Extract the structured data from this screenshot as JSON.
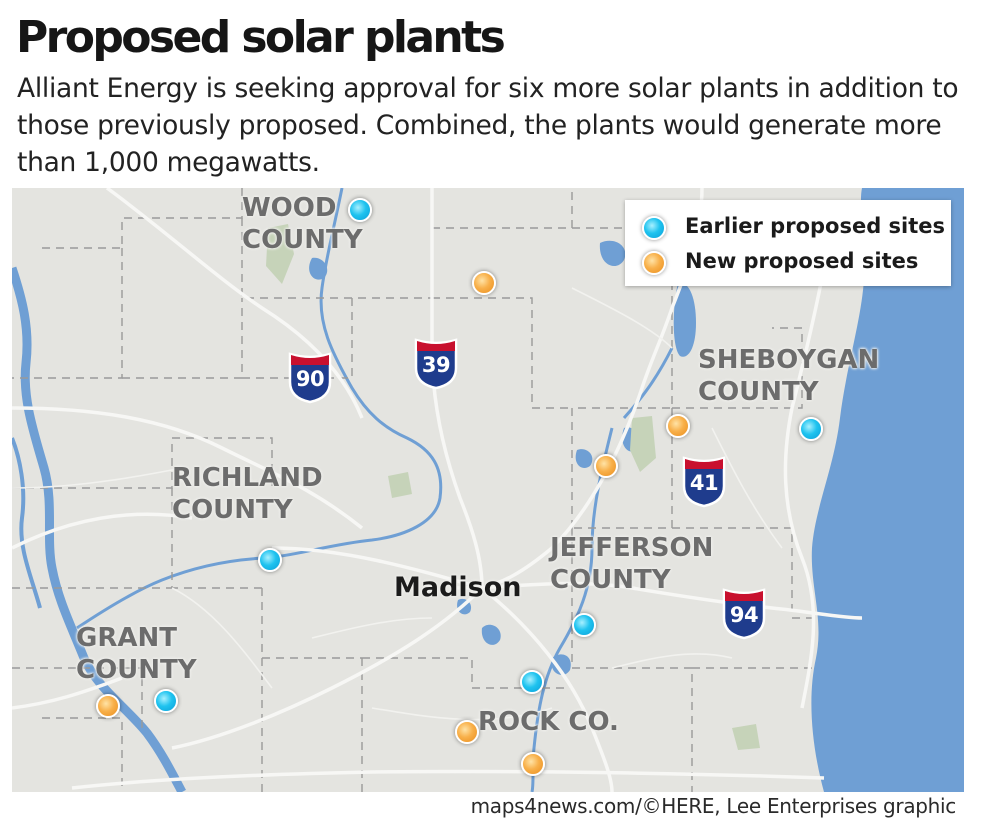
{
  "title": "Proposed solar plants",
  "subtitle": "Alliant Energy is seeking approval for six more solar plants in addition to those previously proposed. Combined, the plants would generate more than 1,000 megawatts.",
  "legend": {
    "earlier": "Earlier proposed sites",
    "new": "New proposed sites"
  },
  "colors": {
    "earlier_marker": "#1fc3ef",
    "new_marker": "#f8b04a",
    "water": "#6f9fd4",
    "land": "#e4e4e0",
    "interstate_blue": "#1f3c8d",
    "interstate_red": "#c8102e"
  },
  "counties": {
    "wood": [
      "WOOD",
      "COUNTY"
    ],
    "richland": [
      "RICHLAND",
      "COUNTY"
    ],
    "grant": [
      "GRANT",
      "COUNTY"
    ],
    "jefferson": [
      "JEFFERSON",
      "COUNTY"
    ],
    "sheboygan": [
      "SHEBOYGAN",
      "COUNTY"
    ],
    "rock": "ROCK CO."
  },
  "city": "Madison",
  "interstates": [
    "90",
    "39",
    "41",
    "94"
  ],
  "credit": "maps4news.com/©HERE, Lee Enterprises graphic"
}
